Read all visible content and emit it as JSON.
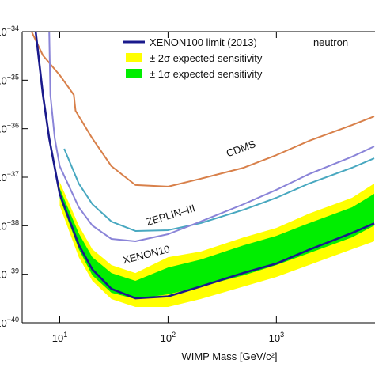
{
  "chart_data": {
    "type": "line",
    "xlabel": "WIMP Mass [GeV/c²]",
    "annotation": "neutron",
    "xscale": "log",
    "yscale": "log",
    "xlim": [
      4.5,
      8000
    ],
    "ylim": [
      1e-40,
      1e-34
    ],
    "xticks": [
      {
        "value": 10,
        "label": "10",
        "exponent": "1"
      },
      {
        "value": 100,
        "label": "10",
        "exponent": "2"
      },
      {
        "value": 1000,
        "label": "10",
        "exponent": "3"
      }
    ],
    "yticks": [
      {
        "value": 1e-40,
        "label": "10",
        "exponent": "−40"
      },
      {
        "value": 1e-39,
        "label": "10",
        "exponent": "−39"
      },
      {
        "value": 1e-38,
        "label": "10",
        "exponent": "−38"
      },
      {
        "value": 1e-37,
        "label": "10",
        "exponent": "−37"
      },
      {
        "value": 1e-36,
        "label": "10",
        "exponent": "−36"
      },
      {
        "value": 1e-35,
        "label": "10",
        "exponent": "−35"
      },
      {
        "value": 1e-34,
        "label": "10",
        "exponent": "−34"
      }
    ],
    "legend_position": "upper right",
    "bands": [
      {
        "name": "± 2σ expected sensitivity",
        "color": "#ffff00",
        "x": [
          10,
          15,
          20,
          30,
          50,
          100,
          200,
          500,
          1000,
          2000,
          5000,
          8000
        ],
        "upper": [
          8e-38,
          1.01e-38,
          3.28e-39,
          1.55e-39,
          1.06e-39,
          2.25e-39,
          2.93e-39,
          5.77e-39,
          9e-39,
          1.78e-38,
          3.77e-38,
          7.4e-38
        ],
        "lower": [
          2.59e-38,
          2.25e-39,
          7.3e-40,
          3.08e-40,
          2.12e-40,
          2.12e-40,
          3.08e-40,
          5.6e-40,
          8.8e-40,
          1.55e-39,
          3.28e-39,
          4.78e-39
        ]
      },
      {
        "name": "± 1σ expected sensitivity",
        "color": "#00ee00",
        "x": [
          10,
          15,
          20,
          30,
          50,
          100,
          200,
          500,
          1000,
          2000,
          5000,
          8000
        ],
        "upper": [
          5.9e-38,
          6.95e-39,
          2.25e-39,
          1.06e-39,
          7.3e-40,
          1.38e-39,
          2.01e-39,
          3.96e-39,
          6.2e-39,
          1.13e-38,
          2.4e-38,
          4.54e-38
        ],
        "lower": [
          3.77e-38,
          3.28e-39,
          9.5e-40,
          4.16e-40,
          3.08e-40,
          3.86e-40,
          5.6e-40,
          9.5e-40,
          1.55e-39,
          2.72e-39,
          5.77e-39,
          1.01e-38
        ]
      }
    ],
    "series": [
      {
        "name": "CDMS",
        "color": "#d8804a",
        "x": [
          5.5,
          7,
          10,
          12,
          13.5,
          14,
          20,
          30,
          50,
          100,
          200,
          500,
          1000,
          2000,
          5000,
          8000
        ],
        "values": [
          1e-34,
          3.24e-35,
          1.27e-35,
          7.2e-36,
          4.96e-36,
          2.34e-36,
          6.3e-37,
          1.69e-37,
          6.9e-38,
          6.4e-38,
          9.3e-38,
          1.57e-37,
          2.86e-37,
          5.6e-37,
          1.19e-36,
          1.8e-36
        ]
      },
      {
        "name": "ZEPLIN–III",
        "color": "#48a8c0",
        "x": [
          11,
          15,
          20,
          30,
          50,
          100,
          200,
          500,
          1000,
          2000,
          5000,
          8000
        ],
        "values": [
          3.86e-37,
          7.4e-38,
          2.79e-38,
          1.22e-38,
          7.8e-39,
          8.1e-39,
          1.13e-38,
          2.14e-38,
          3.77e-38,
          7.4e-38,
          1.57e-37,
          2.46e-37
        ]
      },
      {
        "name": "XENON10",
        "color": "#8a84d8",
        "x": [
          8,
          8.2,
          9,
          10,
          15,
          20,
          30,
          50,
          100,
          200,
          500,
          1000,
          2000,
          5000,
          8000
        ],
        "values": [
          1e-34,
          4.96e-36,
          6.3e-37,
          1.69e-37,
          2.4e-38,
          1.01e-38,
          5.35e-39,
          4.78e-39,
          6.7e-39,
          1.22e-38,
          2.79e-38,
          5.5e-38,
          1.16e-37,
          2.65e-37,
          4.3e-37
        ]
      },
      {
        "name": "XENON100 limit (2013)",
        "color": "#1a1a8c",
        "x": [
          6,
          7,
          8,
          10,
          15,
          20,
          30,
          50,
          100,
          200,
          500,
          1000,
          2000,
          5000,
          8000
        ],
        "values": [
          1e-34,
          5e-36,
          6.3e-37,
          4.5e-38,
          4e-39,
          1.26e-39,
          5e-40,
          3.2e-40,
          3.5e-40,
          5.6e-40,
          1.07e-39,
          1.66e-39,
          3.2e-39,
          7.1e-39,
          1.12e-38
        ]
      }
    ]
  }
}
